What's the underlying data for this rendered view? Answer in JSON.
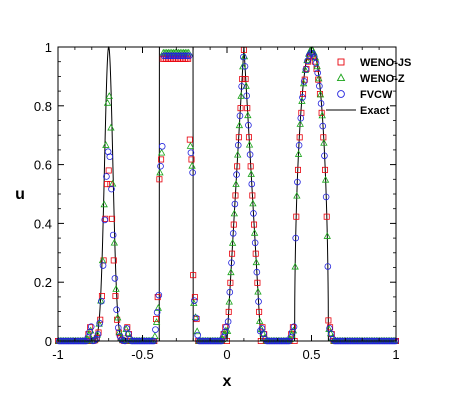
{
  "chart_data": {
    "type": "scatter",
    "title": "",
    "xlabel": "x",
    "ylabel": "u",
    "xlim": [
      -1,
      1
    ],
    "ylim": [
      0,
      1
    ],
    "x_ticks": [
      -1,
      -0.5,
      0,
      0.5,
      1
    ],
    "x_tick_labels": [
      "-1",
      "-0.5",
      "0",
      "0.5",
      "1"
    ],
    "y_ticks": [
      0,
      0.2,
      0.4,
      0.6,
      0.8,
      1
    ],
    "y_tick_labels": [
      "0",
      "0.2",
      "0.4",
      "0.6",
      "0.8",
      "1"
    ],
    "grid": false,
    "legend_position": "top-right",
    "sample_x_start": -1,
    "sample_dx": 0.01,
    "series": [
      {
        "name": "WENO-JS",
        "marker": "square",
        "color": "#e8000b",
        "peak_scale": [
          0.58,
          0.97,
          0.99,
          0.97
        ],
        "edge_drop": 0.07,
        "inner_square": 0.96
      },
      {
        "name": "WENO-Z",
        "marker": "triangle",
        "color": "#17a317",
        "peak_scale": [
          0.84,
          0.99,
          1.0,
          0.99
        ],
        "edge_drop": 0.045,
        "inner_square": 0.98
      },
      {
        "name": "FVCW",
        "marker": "circle",
        "color": "#2222dd",
        "peak_scale": [
          0.65,
          0.98,
          1.0,
          0.98
        ],
        "edge_drop": 0.055,
        "inner_square": 0.97
      },
      {
        "name": "Exact",
        "marker": "line",
        "color": "#000000"
      }
    ],
    "exact_profile": {
      "gaussian": {
        "center": -0.7,
        "width": 0.0245
      },
      "square": {
        "from": -0.4,
        "to": -0.2,
        "value": 1
      },
      "triangle": {
        "center": 0.1,
        "half_width": 0.1
      },
      "ellipse": {
        "center": 0.5,
        "half_width": 0.1
      }
    }
  }
}
